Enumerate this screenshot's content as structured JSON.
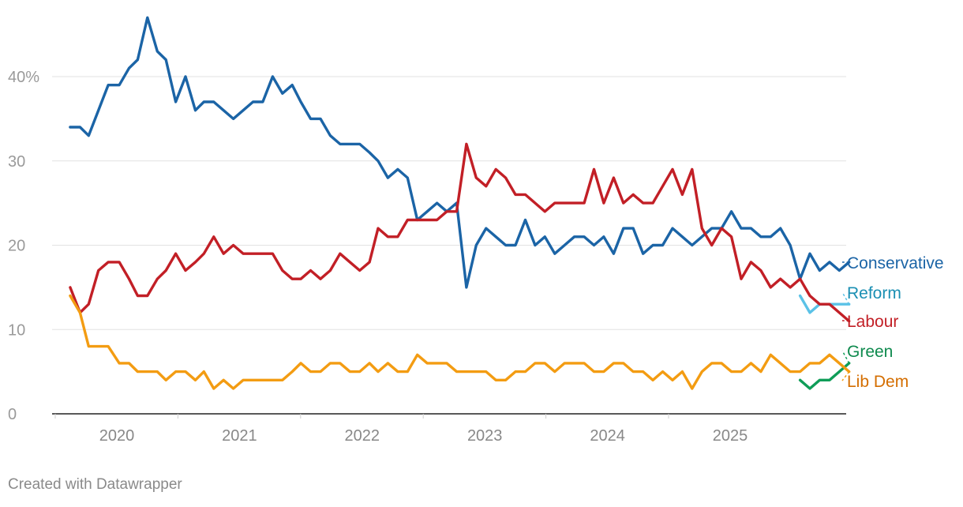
{
  "footer": "Created with Datawrapper",
  "chart_data": {
    "type": "line",
    "title": "",
    "xlabel": "",
    "ylabel": "",
    "ylim": [
      0,
      47
    ],
    "xlim": [
      2019.6,
      2025.92
    ],
    "grid": true,
    "y_ticks": [
      {
        "value": 0,
        "label": "0"
      },
      {
        "value": 10,
        "label": "10"
      },
      {
        "value": 20,
        "label": "20"
      },
      {
        "value": 30,
        "label": "30"
      },
      {
        "value": 40,
        "label": "40%"
      }
    ],
    "x_ticks": [
      {
        "value": 2020,
        "label": "2020"
      },
      {
        "value": 2021,
        "label": "2021"
      },
      {
        "value": 2022,
        "label": "2022"
      },
      {
        "value": 2023,
        "label": "2023"
      },
      {
        "value": 2024,
        "label": "2024"
      },
      {
        "value": 2025,
        "label": "2025"
      }
    ],
    "series": [
      {
        "name": "Conservative",
        "color": "#1b64a6",
        "label_color": "#1b64a6",
        "points": [
          [
            2019.62,
            34
          ],
          [
            2019.7,
            34
          ],
          [
            2019.77,
            33
          ],
          [
            2019.85,
            36
          ],
          [
            2019.93,
            39
          ],
          [
            2020.02,
            39
          ],
          [
            2020.1,
            41
          ],
          [
            2020.17,
            42
          ],
          [
            2020.25,
            47
          ],
          [
            2020.33,
            43
          ],
          [
            2020.4,
            42
          ],
          [
            2020.48,
            37
          ],
          [
            2020.56,
            40
          ],
          [
            2020.64,
            36
          ],
          [
            2020.71,
            37
          ],
          [
            2020.79,
            37
          ],
          [
            2020.87,
            36
          ],
          [
            2020.95,
            35
          ],
          [
            2021.03,
            36
          ],
          [
            2021.11,
            37
          ],
          [
            2021.19,
            37
          ],
          [
            2021.27,
            40
          ],
          [
            2021.35,
            38
          ],
          [
            2021.43,
            39
          ],
          [
            2021.5,
            37
          ],
          [
            2021.58,
            35
          ],
          [
            2021.66,
            35
          ],
          [
            2021.74,
            33
          ],
          [
            2021.82,
            32
          ],
          [
            2021.9,
            32
          ],
          [
            2021.98,
            32
          ],
          [
            2022.06,
            31
          ],
          [
            2022.13,
            30
          ],
          [
            2022.21,
            28
          ],
          [
            2022.29,
            29
          ],
          [
            2022.37,
            28
          ],
          [
            2022.45,
            23
          ],
          [
            2022.53,
            24
          ],
          [
            2022.61,
            25
          ],
          [
            2022.69,
            24
          ],
          [
            2022.77,
            25
          ],
          [
            2022.85,
            15
          ],
          [
            2022.93,
            20
          ],
          [
            2023.01,
            22
          ],
          [
            2023.09,
            21
          ],
          [
            2023.17,
            20
          ],
          [
            2023.25,
            20
          ],
          [
            2023.33,
            23
          ],
          [
            2023.41,
            20
          ],
          [
            2023.49,
            21
          ],
          [
            2023.57,
            19
          ],
          [
            2023.65,
            20
          ],
          [
            2023.73,
            21
          ],
          [
            2023.81,
            21
          ],
          [
            2023.89,
            20
          ],
          [
            2023.97,
            21
          ],
          [
            2024.05,
            19
          ],
          [
            2024.13,
            22
          ],
          [
            2024.21,
            22
          ],
          [
            2024.29,
            19
          ],
          [
            2024.37,
            20
          ],
          [
            2024.45,
            20
          ],
          [
            2024.53,
            22
          ],
          [
            2024.61,
            21
          ],
          [
            2024.69,
            20
          ],
          [
            2024.85,
            22
          ],
          [
            2024.93,
            22
          ],
          [
            2025.01,
            24
          ],
          [
            2025.09,
            22
          ],
          [
            2025.17,
            22
          ],
          [
            2025.25,
            21
          ],
          [
            2025.33,
            21
          ],
          [
            2025.41,
            22
          ],
          [
            2025.49,
            20
          ],
          [
            2025.57,
            16
          ],
          [
            2025.65,
            19
          ],
          [
            2025.73,
            17
          ],
          [
            2025.81,
            18
          ],
          [
            2025.89,
            17
          ],
          [
            2025.97,
            18
          ]
        ],
        "end_value": 18
      },
      {
        "name": "Reform",
        "color": "#5bc2e7",
        "label_color": "#1a8fb3",
        "points": [
          [
            2025.57,
            14
          ],
          [
            2025.65,
            12
          ],
          [
            2025.73,
            13
          ],
          [
            2025.81,
            13
          ],
          [
            2025.89,
            13
          ],
          [
            2025.97,
            13
          ]
        ],
        "end_value": 13.5
      },
      {
        "name": "Labour",
        "color": "#c21f26",
        "label_color": "#c21f26",
        "points": [
          [
            2019.62,
            15
          ],
          [
            2019.7,
            12
          ],
          [
            2019.77,
            13
          ],
          [
            2019.85,
            17
          ],
          [
            2019.93,
            18
          ],
          [
            2020.02,
            18
          ],
          [
            2020.1,
            16
          ],
          [
            2020.17,
            14
          ],
          [
            2020.25,
            14
          ],
          [
            2020.33,
            16
          ],
          [
            2020.4,
            17
          ],
          [
            2020.48,
            19
          ],
          [
            2020.56,
            17
          ],
          [
            2020.64,
            18
          ],
          [
            2020.71,
            19
          ],
          [
            2020.79,
            21
          ],
          [
            2020.87,
            19
          ],
          [
            2020.95,
            20
          ],
          [
            2021.03,
            19
          ],
          [
            2021.11,
            19
          ],
          [
            2021.19,
            19
          ],
          [
            2021.27,
            19
          ],
          [
            2021.35,
            17
          ],
          [
            2021.43,
            16
          ],
          [
            2021.5,
            16
          ],
          [
            2021.58,
            17
          ],
          [
            2021.66,
            16
          ],
          [
            2021.74,
            17
          ],
          [
            2021.82,
            19
          ],
          [
            2021.9,
            18
          ],
          [
            2021.98,
            17
          ],
          [
            2022.06,
            18
          ],
          [
            2022.13,
            22
          ],
          [
            2022.21,
            21
          ],
          [
            2022.29,
            21
          ],
          [
            2022.37,
            23
          ],
          [
            2022.45,
            23
          ],
          [
            2022.53,
            23
          ],
          [
            2022.61,
            23
          ],
          [
            2022.69,
            24
          ],
          [
            2022.77,
            24
          ],
          [
            2022.85,
            32
          ],
          [
            2022.93,
            28
          ],
          [
            2023.01,
            27
          ],
          [
            2023.09,
            29
          ],
          [
            2023.17,
            28
          ],
          [
            2023.25,
            26
          ],
          [
            2023.33,
            26
          ],
          [
            2023.41,
            25
          ],
          [
            2023.49,
            24
          ],
          [
            2023.57,
            25
          ],
          [
            2023.65,
            25
          ],
          [
            2023.73,
            25
          ],
          [
            2023.81,
            25
          ],
          [
            2023.89,
            29
          ],
          [
            2023.97,
            25
          ],
          [
            2024.05,
            28
          ],
          [
            2024.13,
            25
          ],
          [
            2024.21,
            26
          ],
          [
            2024.29,
            25
          ],
          [
            2024.37,
            25
          ],
          [
            2024.45,
            27
          ],
          [
            2024.53,
            29
          ],
          [
            2024.61,
            26
          ],
          [
            2024.69,
            29
          ],
          [
            2024.77,
            22
          ],
          [
            2024.85,
            20
          ],
          [
            2024.93,
            22
          ],
          [
            2025.01,
            21
          ],
          [
            2025.09,
            16
          ],
          [
            2025.17,
            18
          ],
          [
            2025.25,
            17
          ],
          [
            2025.33,
            15
          ],
          [
            2025.41,
            16
          ],
          [
            2025.49,
            15
          ],
          [
            2025.57,
            16
          ],
          [
            2025.65,
            14
          ],
          [
            2025.73,
            13
          ],
          [
            2025.81,
            13
          ],
          [
            2025.89,
            12
          ],
          [
            2025.97,
            11
          ]
        ],
        "end_value": 11
      },
      {
        "name": "Green",
        "color": "#0f9d58",
        "label_color": "#0f8a4e",
        "points": [
          [
            2025.57,
            4
          ],
          [
            2025.65,
            3
          ],
          [
            2025.73,
            4
          ],
          [
            2025.81,
            4
          ],
          [
            2025.89,
            5
          ],
          [
            2025.97,
            6
          ]
        ],
        "end_value": 6
      },
      {
        "name": "Lib Dem",
        "color": "#f39c12",
        "label_color": "#d46e00",
        "points": [
          [
            2019.62,
            14
          ],
          [
            2019.7,
            12
          ],
          [
            2019.77,
            8
          ],
          [
            2019.85,
            8
          ],
          [
            2019.93,
            8
          ],
          [
            2020.02,
            6
          ],
          [
            2020.1,
            6
          ],
          [
            2020.17,
            5
          ],
          [
            2020.25,
            5
          ],
          [
            2020.33,
            5
          ],
          [
            2020.4,
            4
          ],
          [
            2020.48,
            5
          ],
          [
            2020.56,
            5
          ],
          [
            2020.64,
            4
          ],
          [
            2020.71,
            5
          ],
          [
            2020.79,
            3
          ],
          [
            2020.87,
            4
          ],
          [
            2020.95,
            3
          ],
          [
            2021.03,
            4
          ],
          [
            2021.11,
            4
          ],
          [
            2021.19,
            4
          ],
          [
            2021.27,
            4
          ],
          [
            2021.35,
            4
          ],
          [
            2021.43,
            5
          ],
          [
            2021.5,
            6
          ],
          [
            2021.58,
            5
          ],
          [
            2021.66,
            5
          ],
          [
            2021.74,
            6
          ],
          [
            2021.82,
            6
          ],
          [
            2021.9,
            5
          ],
          [
            2021.98,
            5
          ],
          [
            2022.06,
            6
          ],
          [
            2022.13,
            5
          ],
          [
            2022.21,
            6
          ],
          [
            2022.29,
            5
          ],
          [
            2022.37,
            5
          ],
          [
            2022.45,
            7
          ],
          [
            2022.53,
            6
          ],
          [
            2022.61,
            6
          ],
          [
            2022.69,
            6
          ],
          [
            2022.77,
            5
          ],
          [
            2022.85,
            5
          ],
          [
            2022.93,
            5
          ],
          [
            2023.01,
            5
          ],
          [
            2023.09,
            4
          ],
          [
            2023.17,
            4
          ],
          [
            2023.25,
            5
          ],
          [
            2023.33,
            5
          ],
          [
            2023.41,
            6
          ],
          [
            2023.49,
            6
          ],
          [
            2023.57,
            5
          ],
          [
            2023.65,
            6
          ],
          [
            2023.73,
            6
          ],
          [
            2023.81,
            6
          ],
          [
            2023.89,
            5
          ],
          [
            2023.97,
            5
          ],
          [
            2024.05,
            6
          ],
          [
            2024.13,
            6
          ],
          [
            2024.21,
            5
          ],
          [
            2024.29,
            5
          ],
          [
            2024.37,
            4
          ],
          [
            2024.45,
            5
          ],
          [
            2024.53,
            4
          ],
          [
            2024.61,
            5
          ],
          [
            2024.69,
            3
          ],
          [
            2024.77,
            5
          ],
          [
            2024.85,
            6
          ],
          [
            2024.93,
            6
          ],
          [
            2025.01,
            5
          ],
          [
            2025.09,
            5
          ],
          [
            2025.17,
            6
          ],
          [
            2025.25,
            5
          ],
          [
            2025.33,
            7
          ],
          [
            2025.41,
            6
          ],
          [
            2025.49,
            5
          ],
          [
            2025.57,
            5
          ],
          [
            2025.65,
            6
          ],
          [
            2025.73,
            6
          ],
          [
            2025.81,
            7
          ],
          [
            2025.89,
            6
          ],
          [
            2025.97,
            5
          ]
        ],
        "end_value": 5
      }
    ]
  }
}
